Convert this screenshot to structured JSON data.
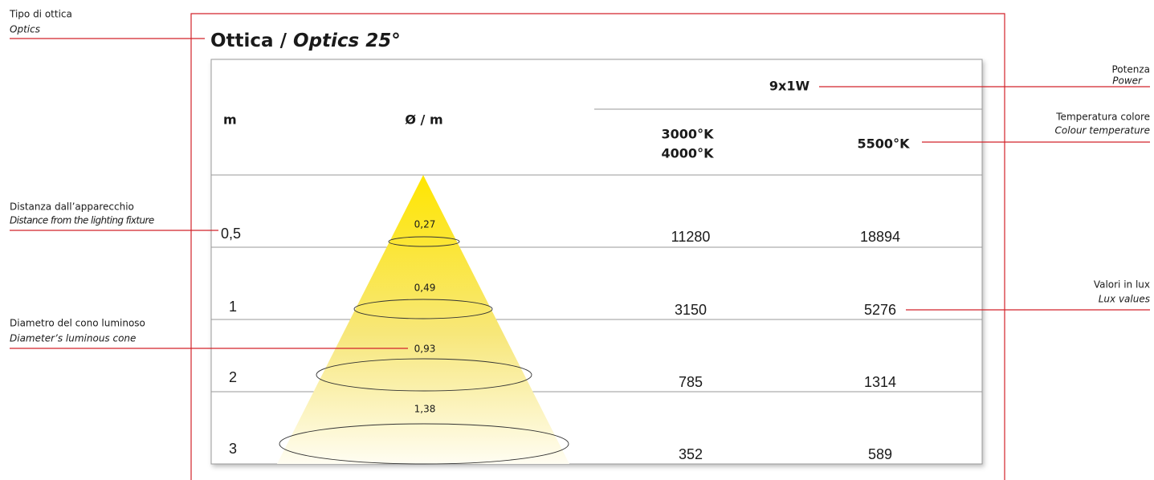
{
  "annotations": {
    "optics": {
      "it": "Tipo di ottica",
      "en": "Optics"
    },
    "distance": {
      "it": "Distanza dall’apparecchio",
      "en": "Distance from the lighting fixture"
    },
    "diameter": {
      "it": "Diametro del cono luminoso",
      "en": "Diameter’s luminous cone"
    },
    "power": {
      "it": "Potenza",
      "en": "Power"
    },
    "colour_temperature": {
      "it": "Temperatura colore",
      "en": "Colour temperature"
    },
    "lux": {
      "it": "Valori in lux",
      "en": "Lux values"
    }
  },
  "title": {
    "main": "Ottica /",
    "italic": "Optics 25°"
  },
  "table": {
    "header": {
      "distance": "m",
      "diameter": "Ø / m",
      "power": "9x1W",
      "temp1": [
        "3000°K",
        "4000°K"
      ],
      "temp2": "5500°K"
    },
    "rows": [
      {
        "distance": "0,5",
        "diameter": "0,27",
        "lux": [
          11280,
          18894
        ]
      },
      {
        "distance": "1",
        "diameter": "0,49",
        "lux": [
          3150,
          5276
        ]
      },
      {
        "distance": "2",
        "diameter": "0,93",
        "lux": [
          785,
          1314
        ]
      },
      {
        "distance": "3",
        "diameter": "1,38",
        "lux": [
          352,
          589
        ]
      }
    ]
  }
}
